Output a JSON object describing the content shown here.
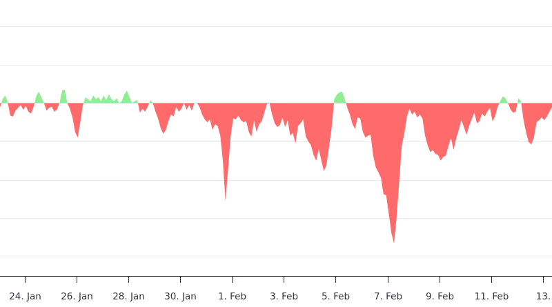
{
  "chart_data": {
    "type": "area",
    "title": "",
    "xlabel": "",
    "ylabel": "",
    "baseline": 0,
    "x_tick_labels": [
      "24. Jan",
      "26. Jan",
      "28. Jan",
      "30. Jan",
      "1. Feb",
      "3. Feb",
      "5. Feb",
      "7. Feb",
      "9. Feb",
      "11. Feb",
      "13."
    ],
    "x_tick_days": [
      1,
      3,
      5,
      7,
      9,
      11,
      13,
      15,
      17,
      19,
      21
    ],
    "x_range_days": [
      0,
      21.4
    ],
    "ylim": [
      -18,
      9
    ],
    "y_gridlines": [
      8,
      4,
      0,
      -4,
      -8,
      -12,
      -16
    ],
    "grid": true,
    "legend": "none",
    "positive_color": "#90ed96",
    "negative_color": "#ff6b6b",
    "series": [
      {
        "x": [
          0.0,
          0.05,
          0.15,
          0.25,
          0.35,
          0.45,
          0.55,
          0.65,
          0.75,
          0.85,
          0.95,
          1.05,
          1.15,
          1.25,
          1.35,
          1.45,
          1.55,
          1.65,
          1.75,
          1.85,
          1.95,
          2.05,
          2.15,
          2.25,
          2.35,
          2.45,
          2.55,
          2.65,
          2.75,
          2.85,
          2.95,
          3.05,
          3.15,
          3.25,
          3.35,
          3.45,
          3.55,
          3.65,
          3.75,
          3.85,
          3.95,
          4.05,
          4.15,
          4.25,
          4.35,
          4.45,
          4.55,
          4.65,
          4.75,
          4.85,
          4.95,
          5.05,
          5.15,
          5.25,
          5.35,
          5.45,
          5.55,
          5.65,
          5.75,
          5.85,
          5.95,
          6.05,
          6.15,
          6.25,
          6.35,
          6.45,
          6.55,
          6.65,
          6.75,
          6.85,
          6.95,
          7.05,
          7.15,
          7.25,
          7.35,
          7.45,
          7.55,
          7.65,
          7.75,
          7.85,
          7.95,
          8.05,
          8.15,
          8.25,
          8.35,
          8.45,
          8.55,
          8.65,
          8.75,
          8.85,
          8.95,
          9.05,
          9.15,
          9.25,
          9.35,
          9.45,
          9.55,
          9.65,
          9.75,
          9.85,
          9.95,
          10.05,
          10.15,
          10.25,
          10.35,
          10.45,
          10.55,
          10.65,
          10.75,
          10.85,
          10.95,
          11.05,
          11.15,
          11.25,
          11.35,
          11.45,
          11.55,
          11.65,
          11.75,
          11.85,
          11.95,
          12.05,
          12.15,
          12.25,
          12.35,
          12.45,
          12.55,
          12.65,
          12.75,
          12.85,
          12.95,
          13.05,
          13.15,
          13.25,
          13.35,
          13.45,
          13.55,
          13.65,
          13.75,
          13.85,
          13.95,
          14.05,
          14.15,
          14.25,
          14.35,
          14.45,
          14.55,
          14.65,
          14.75,
          14.85,
          14.95,
          15.05,
          15.15,
          15.25,
          15.35,
          15.45,
          15.55,
          15.65,
          15.75,
          15.85,
          15.95,
          16.05,
          16.15,
          16.25,
          16.35,
          16.45,
          16.55,
          16.65,
          16.75,
          16.85,
          16.95,
          17.05,
          17.15,
          17.25,
          17.35,
          17.45,
          17.55,
          17.65,
          17.75,
          17.85,
          17.95,
          18.05,
          18.15,
          18.25,
          18.35,
          18.45,
          18.55,
          18.65,
          18.75,
          18.85,
          18.95,
          19.05,
          19.15,
          19.25,
          19.35,
          19.45,
          19.55,
          19.65,
          19.75,
          19.85,
          19.95,
          20.05,
          20.15,
          20.25,
          20.35,
          20.45,
          20.55,
          20.65,
          20.75,
          20.85,
          20.95,
          21.05,
          21.15,
          21.25,
          21.35,
          21.4
        ],
        "values": [
          -0.6,
          -0.5,
          0.4,
          0.8,
          0.1,
          -1.3,
          -1.4,
          -0.8,
          -0.5,
          -0.2,
          -0.7,
          -0.3,
          -0.9,
          -1.1,
          -0.4,
          0.7,
          1.2,
          0.6,
          0.0,
          -0.8,
          -0.5,
          -0.4,
          -0.9,
          -0.7,
          0.0,
          1.3,
          1.4,
          0.0,
          -0.6,
          -1.5,
          -3.0,
          -3.6,
          -2.0,
          -0.2,
          0.6,
          0.4,
          0.2,
          0.8,
          0.4,
          0.6,
          0.2,
          0.8,
          0.3,
          0.9,
          0.4,
          0.2,
          0.5,
          0.0,
          0.2,
          0.9,
          1.3,
          0.6,
          0.0,
          0.2,
          0.3,
          -1.0,
          -0.6,
          -0.9,
          -0.4,
          0.3,
          0.0,
          -0.9,
          -1.6,
          -2.6,
          -3.2,
          -2.8,
          -1.9,
          -1.2,
          -1.4,
          -0.4,
          -0.9,
          -0.6,
          0.0,
          -0.7,
          -0.2,
          -0.8,
          0.0,
          0.0,
          -0.4,
          -1.2,
          -1.7,
          -2.0,
          -1.7,
          -2.8,
          -2.2,
          -2.4,
          -3.4,
          -6.0,
          -10.2,
          -7.0,
          -3.5,
          -1.6,
          -1.7,
          -1.3,
          -1.8,
          -2.0,
          -1.9,
          -3.0,
          -3.5,
          -1.8,
          -3.0,
          -2.2,
          -1.9,
          -1.0,
          -0.1,
          0.0,
          -1.2,
          -2.1,
          -2.5,
          -2.3,
          -1.5,
          -2.5,
          -1.8,
          -3.4,
          -3.1,
          -4.2,
          -2.4,
          -2.1,
          -1.7,
          -3.5,
          -4.0,
          -4.4,
          -5.4,
          -6.0,
          -4.8,
          -6.0,
          -7.1,
          -6.4,
          -4.5,
          -2.5,
          0.4,
          0.9,
          1.1,
          1.2,
          0.5,
          -0.5,
          -1.2,
          -2.2,
          -2.7,
          -1.5,
          -1.6,
          -3.0,
          -3.6,
          -3.4,
          -3.3,
          -5.5,
          -6.7,
          -7.2,
          -7.8,
          -9.5,
          -9.6,
          -11.5,
          -13.5,
          -14.6,
          -12.0,
          -8.3,
          -4.5,
          -3.2,
          -1.4,
          -0.6,
          -1.2,
          -0.9,
          -1.5,
          -1.2,
          -1.6,
          -3.4,
          -4.4,
          -5.1,
          -4.9,
          -5.3,
          -5.4,
          -6.0,
          -5.6,
          -5.5,
          -4.5,
          -3.6,
          -4.9,
          -3.7,
          -2.8,
          -1.8,
          -2.5,
          -3.3,
          -2.4,
          -1.7,
          -1.0,
          -2.1,
          -1.9,
          -1.1,
          -1.4,
          -0.9,
          -0.5,
          -1.9,
          -1.4,
          -0.4,
          0.2,
          0.7,
          0.5,
          0.0,
          -0.7,
          -1.0,
          -0.9,
          0.5,
          0.2,
          -1.8,
          -3.1,
          -4.1,
          -4.3,
          -3.6,
          -2.0,
          -1.8,
          -1.5,
          -1.8,
          -1.4,
          -0.9,
          -0.4,
          -0.2
        ]
      }
    ]
  }
}
